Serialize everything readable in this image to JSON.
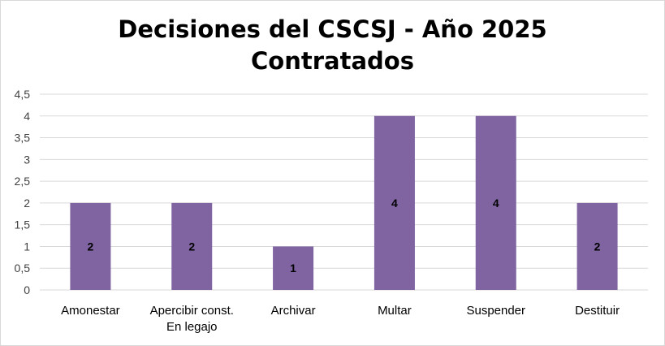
{
  "chart_data": {
    "type": "bar",
    "title_lines": [
      "Decisiones del CSCSJ - Año 2025",
      "Contratados"
    ],
    "categories": [
      [
        "Amonestar"
      ],
      [
        "Apercibir const.",
        "En legajo"
      ],
      [
        "Archivar"
      ],
      [
        "Multar"
      ],
      [
        "Suspender"
      ],
      [
        "Destituir"
      ]
    ],
    "values": [
      2,
      2,
      1,
      4,
      4,
      2
    ],
    "data_labels": [
      "2",
      "2",
      "1",
      "4",
      "4",
      "2"
    ],
    "y_ticks": [
      0,
      0.5,
      1,
      1.5,
      2,
      2.5,
      3,
      3.5,
      4,
      4.5
    ],
    "y_tick_labels": [
      "0",
      "0,5",
      "1",
      "1,5",
      "2",
      "2,5",
      "3",
      "3,5",
      "4",
      "4,5"
    ],
    "ylim": [
      0,
      4.5
    ],
    "xlabel": "",
    "ylabel": "",
    "grid": true,
    "legend": "none",
    "bar_color": "#8064a2",
    "grid_color": "#d9d9d9"
  }
}
